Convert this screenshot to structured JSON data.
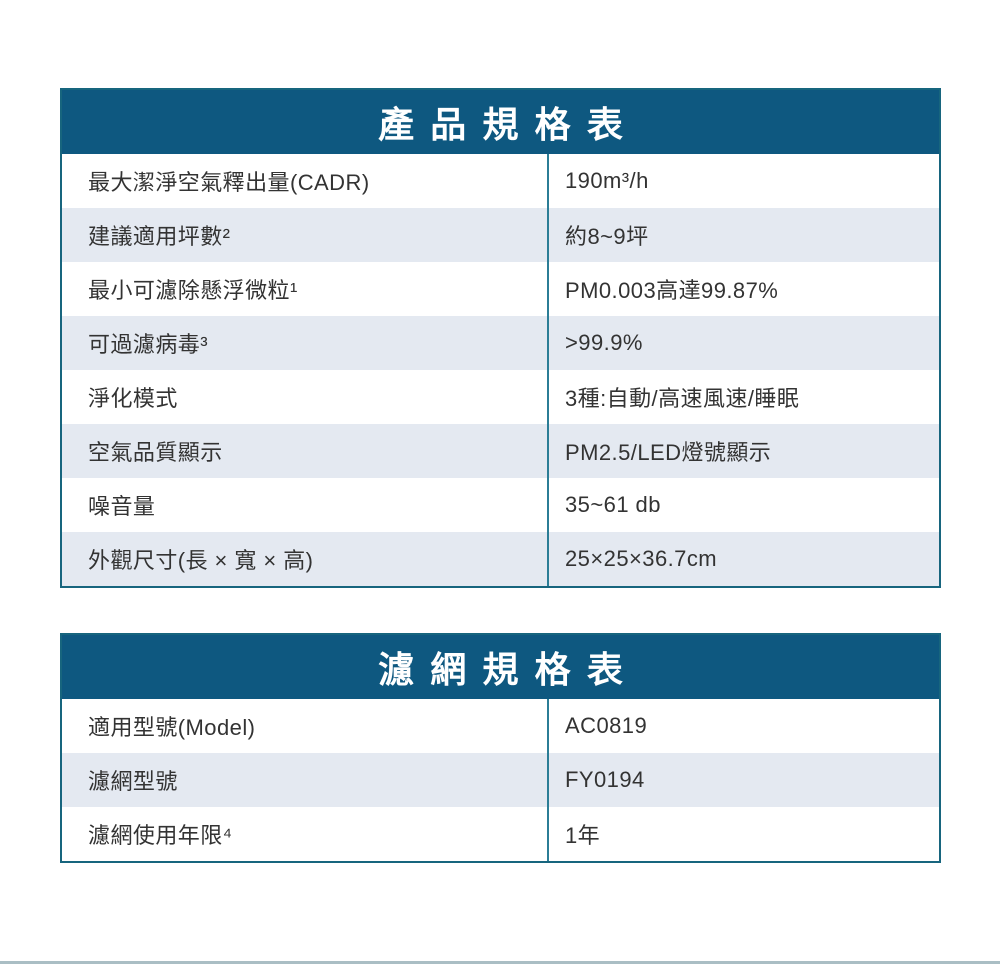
{
  "colors": {
    "header_bg": "#0e5880",
    "outer_border": "#17657e",
    "column_divider": "#2b7d96",
    "stripe_row_bg": "#e4e9f1",
    "text": "#333333",
    "header_text": "#ffffff"
  },
  "tables": [
    {
      "title": "產品規格表",
      "rows": [
        {
          "label": "最大潔淨空氣釋出量(CADR)",
          "value": "190m³/h"
        },
        {
          "label": "建議適用坪數²",
          "value": "約8~9坪"
        },
        {
          "label": "最小可濾除懸浮微粒¹",
          "value": "PM0.003高達99.87%"
        },
        {
          "label": "可過濾病毒³",
          "value": ">99.9%"
        },
        {
          "label": "淨化模式",
          "value": "3種:自動/高速風速/睡眠"
        },
        {
          "label": "空氣品質顯示",
          "value": "PM2.5/LED燈號顯示"
        },
        {
          "label": "噪音量",
          "value": "35~61 db"
        },
        {
          "label": "外觀尺寸(長 × 寬 × 高)",
          "value": "25×25×36.7cm"
        }
      ]
    },
    {
      "title": "濾網規格表",
      "rows": [
        {
          "label": "適用型號(Model)",
          "value": "AC0819"
        },
        {
          "label": "濾網型號",
          "value": "FY0194"
        },
        {
          "label": "濾網使用年限⁴",
          "value": "1年"
        }
      ]
    }
  ]
}
